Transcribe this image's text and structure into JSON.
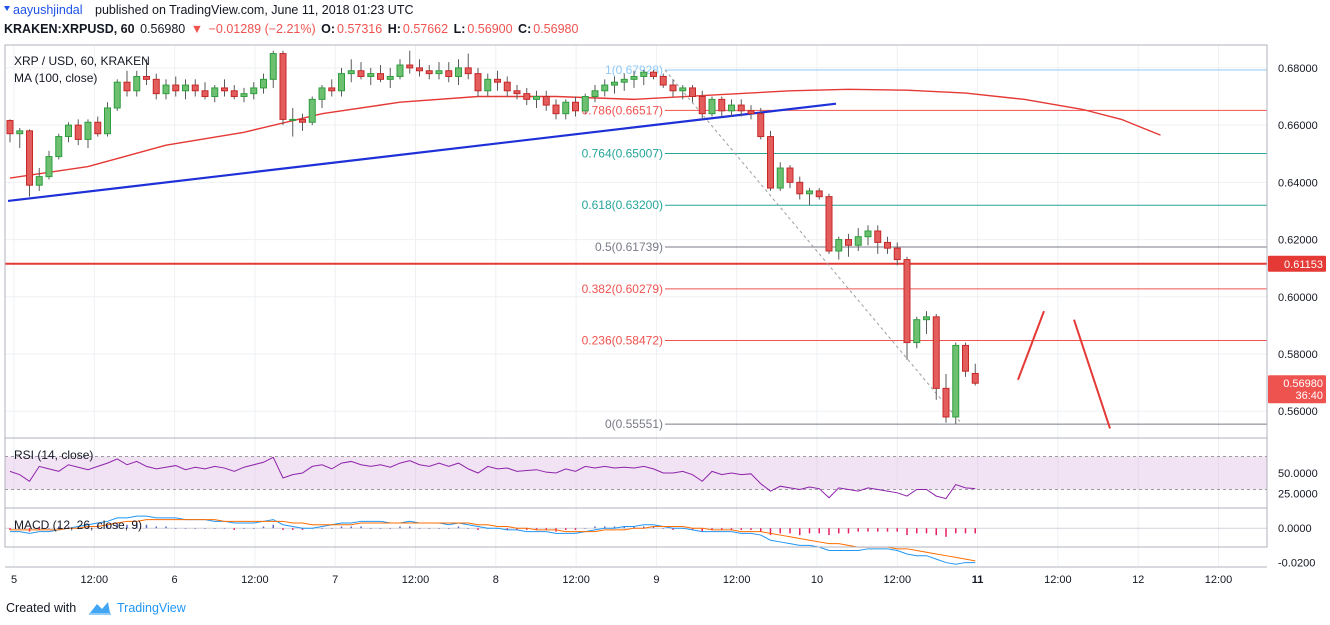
{
  "header": {
    "author": "aayushjindal",
    "published_text": "published on TradingView.com, June 11, 2018 01:23 UTC"
  },
  "ticker": {
    "symbol": "KRAKEN:XRPUSD, 60",
    "price": "0.56980",
    "change": "−0.01289 (−2.21%)",
    "open_label": "O:",
    "open": "0.57316",
    "high_label": "H:",
    "high": "0.57662",
    "low_label": "L:",
    "low": "0.56900",
    "close_label": "C:",
    "close": "0.56980",
    "colors": {
      "down": "#ef5350",
      "text": "#131722"
    }
  },
  "chart_data": {
    "type": "candlestick",
    "title": "XRP / USD, 60, KRAKEN",
    "indicator_label": "MA (100, close)",
    "y_axis_ticks": [
      "0.68000",
      "0.66000",
      "0.64000",
      "0.62000",
      "0.60000",
      "0.58000",
      "0.56000"
    ],
    "y_range": [
      0.551,
      0.688
    ],
    "x_axis_ticks": [
      "5",
      "12:00",
      "6",
      "12:00",
      "7",
      "12:00",
      "8",
      "12:00",
      "9",
      "12:00",
      "10",
      "12:00",
      "11",
      "12:00",
      "12",
      "12:00"
    ],
    "price_tags": [
      {
        "value": 0.61153,
        "text": "0.61153",
        "color": "#e53935"
      },
      {
        "value": 0.5698,
        "text": "0.56980",
        "color": "#ef5350"
      },
      {
        "value": 0.5656,
        "text": "36:40",
        "color": "#ef5350"
      }
    ],
    "horizontal_line": {
      "value": 0.61153,
      "color": "#e53935"
    },
    "fibonacci": [
      {
        "label": "1(0.67928)",
        "value": 0.67928,
        "color": "#90caf9"
      },
      {
        "label": "0.786(0.66517)",
        "value": 0.66517,
        "color": "#ef5350"
      },
      {
        "label": "0.764(0.65007)",
        "value": 0.65007,
        "color": "#26a69a"
      },
      {
        "label": "0.618(0.63200)",
        "value": 0.632,
        "color": "#26a69a"
      },
      {
        "label": "0.5(0.61739)",
        "value": 0.61739,
        "color": "#787b86"
      },
      {
        "label": "0.382(0.60279)",
        "value": 0.60279,
        "color": "#ef5350"
      },
      {
        "label": "0.236(0.58472)",
        "value": 0.58472,
        "color": "#ef5350"
      },
      {
        "label": "0(0.55551)",
        "value": 0.55551,
        "color": "#787b86"
      }
    ],
    "trendline": {
      "from": {
        "x": 0,
        "y": 0.6335
      },
      "to": {
        "x": 106,
        "y": 0.6675
      },
      "color": "#1e30d8"
    },
    "ma100": [
      [
        0,
        0.6415
      ],
      [
        8,
        0.6455
      ],
      [
        16,
        0.653
      ],
      [
        24,
        0.6575
      ],
      [
        32,
        0.664
      ],
      [
        40,
        0.668
      ],
      [
        48,
        0.67
      ],
      [
        56,
        0.67
      ],
      [
        64,
        0.669
      ],
      [
        72,
        0.6705
      ],
      [
        80,
        0.672
      ],
      [
        86,
        0.6725
      ],
      [
        92,
        0.6722
      ],
      [
        98,
        0.6712
      ],
      [
        104,
        0.669
      ],
      [
        110,
        0.6655
      ],
      [
        114,
        0.662
      ],
      [
        118,
        0.6565
      ]
    ],
    "candles": [
      [
        0.6616,
        0.662,
        0.654,
        0.657
      ],
      [
        0.657,
        0.659,
        0.652,
        0.658
      ],
      [
        0.658,
        0.6585,
        0.635,
        0.639
      ],
      [
        0.639,
        0.645,
        0.637,
        0.642
      ],
      [
        0.642,
        0.651,
        0.641,
        0.649
      ],
      [
        0.649,
        0.657,
        0.648,
        0.656
      ],
      [
        0.656,
        0.661,
        0.654,
        0.66
      ],
      [
        0.66,
        0.662,
        0.653,
        0.655
      ],
      [
        0.655,
        0.662,
        0.652,
        0.661
      ],
      [
        0.661,
        0.663,
        0.656,
        0.657
      ],
      [
        0.657,
        0.668,
        0.656,
        0.666
      ],
      [
        0.666,
        0.676,
        0.665,
        0.675
      ],
      [
        0.675,
        0.679,
        0.67,
        0.672
      ],
      [
        0.672,
        0.679,
        0.67,
        0.677
      ],
      [
        0.677,
        0.683,
        0.674,
        0.676
      ],
      [
        0.676,
        0.678,
        0.669,
        0.671
      ],
      [
        0.671,
        0.676,
        0.669,
        0.674
      ],
      [
        0.674,
        0.677,
        0.67,
        0.672
      ],
      [
        0.672,
        0.676,
        0.669,
        0.674
      ],
      [
        0.674,
        0.676,
        0.67,
        0.672
      ],
      [
        0.672,
        0.675,
        0.669,
        0.67
      ],
      [
        0.67,
        0.674,
        0.668,
        0.673
      ],
      [
        0.673,
        0.676,
        0.67,
        0.672
      ],
      [
        0.672,
        0.674,
        0.669,
        0.67
      ],
      [
        0.67,
        0.673,
        0.668,
        0.671
      ],
      [
        0.671,
        0.675,
        0.669,
        0.673
      ],
      [
        0.673,
        0.678,
        0.671,
        0.676
      ],
      [
        0.676,
        0.686,
        0.673,
        0.685
      ],
      [
        0.685,
        0.686,
        0.66,
        0.662
      ],
      [
        0.662,
        0.666,
        0.656,
        0.662
      ],
      [
        0.662,
        0.664,
        0.658,
        0.661
      ],
      [
        0.661,
        0.67,
        0.66,
        0.669
      ],
      [
        0.669,
        0.674,
        0.666,
        0.673
      ],
      [
        0.673,
        0.676,
        0.67,
        0.672
      ],
      [
        0.672,
        0.68,
        0.67,
        0.678
      ],
      [
        0.678,
        0.683,
        0.675,
        0.679
      ],
      [
        0.679,
        0.682,
        0.676,
        0.677
      ],
      [
        0.677,
        0.68,
        0.674,
        0.678
      ],
      [
        0.678,
        0.681,
        0.675,
        0.676
      ],
      [
        0.676,
        0.68,
        0.673,
        0.677
      ],
      [
        0.677,
        0.683,
        0.676,
        0.681
      ],
      [
        0.681,
        0.686,
        0.678,
        0.68
      ],
      [
        0.68,
        0.683,
        0.677,
        0.679
      ],
      [
        0.679,
        0.681,
        0.676,
        0.678
      ],
      [
        0.678,
        0.682,
        0.676,
        0.679
      ],
      [
        0.679,
        0.682,
        0.675,
        0.677
      ],
      [
        0.677,
        0.683,
        0.674,
        0.68
      ],
      [
        0.68,
        0.685,
        0.676,
        0.678
      ],
      [
        0.678,
        0.68,
        0.67,
        0.672
      ],
      [
        0.672,
        0.678,
        0.67,
        0.676
      ],
      [
        0.676,
        0.679,
        0.672,
        0.675
      ],
      [
        0.675,
        0.677,
        0.67,
        0.672
      ],
      [
        0.672,
        0.674,
        0.669,
        0.671
      ],
      [
        0.671,
        0.673,
        0.667,
        0.669
      ],
      [
        0.669,
        0.672,
        0.666,
        0.67
      ],
      [
        0.67,
        0.672,
        0.665,
        0.667
      ],
      [
        0.667,
        0.669,
        0.662,
        0.664
      ],
      [
        0.664,
        0.669,
        0.662,
        0.668
      ],
      [
        0.668,
        0.67,
        0.663,
        0.665
      ],
      [
        0.665,
        0.671,
        0.664,
        0.67
      ],
      [
        0.67,
        0.674,
        0.668,
        0.672
      ],
      [
        0.672,
        0.676,
        0.67,
        0.674
      ],
      [
        0.674,
        0.677,
        0.671,
        0.675
      ],
      [
        0.675,
        0.678,
        0.672,
        0.676
      ],
      [
        0.676,
        0.679,
        0.673,
        0.677
      ],
      [
        0.677,
        0.6793,
        0.674,
        0.6785
      ],
      [
        0.6785,
        0.6793,
        0.676,
        0.677
      ],
      [
        0.677,
        0.678,
        0.673,
        0.674
      ],
      [
        0.674,
        0.676,
        0.67,
        0.672
      ],
      [
        0.672,
        0.674,
        0.669,
        0.673
      ],
      [
        0.673,
        0.674,
        0.668,
        0.67
      ],
      [
        0.67,
        0.672,
        0.662,
        0.664
      ],
      [
        0.664,
        0.67,
        0.663,
        0.669
      ],
      [
        0.669,
        0.67,
        0.663,
        0.665
      ],
      [
        0.665,
        0.669,
        0.663,
        0.667
      ],
      [
        0.667,
        0.669,
        0.663,
        0.665
      ],
      [
        0.665,
        0.667,
        0.662,
        0.664
      ],
      [
        0.664,
        0.666,
        0.655,
        0.656
      ],
      [
        0.656,
        0.658,
        0.637,
        0.638
      ],
      [
        0.638,
        0.647,
        0.637,
        0.645
      ],
      [
        0.645,
        0.646,
        0.638,
        0.64
      ],
      [
        0.64,
        0.642,
        0.634,
        0.636
      ],
      [
        0.636,
        0.638,
        0.632,
        0.637
      ],
      [
        0.637,
        0.638,
        0.634,
        0.635
      ],
      [
        0.635,
        0.636,
        0.615,
        0.616
      ],
      [
        0.616,
        0.621,
        0.613,
        0.62
      ],
      [
        0.62,
        0.622,
        0.614,
        0.618
      ],
      [
        0.618,
        0.624,
        0.616,
        0.621
      ],
      [
        0.621,
        0.625,
        0.618,
        0.623
      ],
      [
        0.623,
        0.625,
        0.615,
        0.619
      ],
      [
        0.619,
        0.621,
        0.615,
        0.617
      ],
      [
        0.617,
        0.619,
        0.611,
        0.613
      ],
      [
        0.613,
        0.614,
        0.578,
        0.584
      ],
      [
        0.584,
        0.593,
        0.582,
        0.592
      ],
      [
        0.592,
        0.595,
        0.587,
        0.593
      ],
      [
        0.593,
        0.594,
        0.564,
        0.568
      ],
      [
        0.568,
        0.573,
        0.556,
        0.558
      ],
      [
        0.558,
        0.584,
        0.5555,
        0.583
      ],
      [
        0.583,
        0.584,
        0.572,
        0.574
      ],
      [
        0.5732,
        0.5766,
        0.569,
        0.5698
      ]
    ]
  },
  "rsi": {
    "label": "RSI (14, close)",
    "ticks": [
      "50.0000",
      "25.0000"
    ],
    "band": [
      30,
      70
    ],
    "values": [
      52,
      48,
      40,
      58,
      55,
      52,
      60,
      57,
      54,
      58,
      62,
      67,
      60,
      64,
      58,
      55,
      57,
      59,
      54,
      57,
      55,
      58,
      56,
      52,
      57,
      60,
      63,
      69,
      44,
      48,
      50,
      58,
      60,
      55,
      62,
      64,
      60,
      58,
      60,
      57,
      62,
      65,
      60,
      58,
      62,
      58,
      62,
      55,
      50,
      58,
      55,
      56,
      52,
      53,
      54,
      51,
      50,
      55,
      52,
      58,
      56,
      58,
      56,
      57,
      56,
      58,
      55,
      50,
      50,
      52,
      48,
      40,
      52,
      48,
      50,
      48,
      49,
      37,
      28,
      34,
      32,
      30,
      33,
      31,
      20,
      32,
      30,
      28,
      32,
      30,
      28,
      26,
      22,
      30,
      30,
      22,
      19,
      36,
      32,
      31
    ]
  },
  "macd": {
    "label": "MACD (12, 26, close, 9)",
    "ticks": [
      "0.0000",
      "-0.0200"
    ],
    "histogram": [
      -0.001,
      0.0,
      -0.002,
      -0.001,
      0.0,
      0.001,
      0.001,
      0.0,
      0.001,
      0.002,
      0.002,
      0.003,
      0.002,
      0.003,
      0.002,
      0.001,
      0.001,
      0.0,
      0.0,
      0.0,
      0.0,
      0.0,
      0.0,
      -0.001,
      0.0,
      0.0,
      0.001,
      0.002,
      -0.001,
      -0.001,
      -0.001,
      0.0,
      0.0,
      0.0,
      0.001,
      0.001,
      0.001,
      0.0,
      0.0,
      0.0,
      0.001,
      0.001,
      0.0,
      0.0,
      0.0,
      0.0,
      0.001,
      0.0,
      -0.001,
      0.0,
      0.0,
      -0.001,
      -0.001,
      -0.001,
      -0.001,
      -0.001,
      -0.002,
      -0.001,
      -0.001,
      0.0,
      0.001,
      0.001,
      0.001,
      0.001,
      0.001,
      0.001,
      0.001,
      0.0,
      -0.001,
      0.0,
      -0.001,
      -0.002,
      -0.001,
      -0.001,
      -0.001,
      -0.001,
      -0.001,
      -0.002,
      -0.004,
      -0.003,
      -0.003,
      -0.004,
      -0.003,
      -0.003,
      -0.004,
      -0.003,
      -0.003,
      -0.002,
      -0.002,
      -0.002,
      -0.002,
      -0.002,
      -0.004,
      -0.003,
      -0.003,
      -0.004,
      -0.005,
      -0.003,
      -0.003,
      -0.003
    ],
    "macd_line": [
      -0.002,
      -0.002,
      -0.003,
      -0.002,
      -0.002,
      -0.001,
      0.0,
      0.001,
      0.002,
      0.003,
      0.004,
      0.006,
      0.006,
      0.007,
      0.007,
      0.006,
      0.006,
      0.006,
      0.005,
      0.005,
      0.005,
      0.004,
      0.004,
      0.003,
      0.003,
      0.003,
      0.004,
      0.005,
      0.002,
      0.001,
      0.0,
      0.0,
      0.001,
      0.002,
      0.003,
      0.003,
      0.004,
      0.004,
      0.004,
      0.003,
      0.003,
      0.004,
      0.003,
      0.003,
      0.003,
      0.002,
      0.003,
      0.002,
      0.001,
      0.0,
      0.0,
      -0.001,
      -0.001,
      -0.002,
      -0.002,
      -0.002,
      -0.003,
      -0.003,
      -0.003,
      -0.002,
      -0.001,
      0.0,
      0.0,
      0.001,
      0.001,
      0.002,
      0.002,
      0.001,
      0.0,
      0.0,
      -0.001,
      -0.002,
      -0.002,
      -0.002,
      -0.002,
      -0.003,
      -0.003,
      -0.004,
      -0.007,
      -0.008,
      -0.009,
      -0.01,
      -0.01,
      -0.011,
      -0.013,
      -0.013,
      -0.013,
      -0.013,
      -0.012,
      -0.012,
      -0.012,
      -0.013,
      -0.015,
      -0.016,
      -0.016,
      -0.018,
      -0.02,
      -0.021,
      -0.02,
      -0.02
    ],
    "signal_line": [
      -0.001,
      -0.001,
      -0.001,
      -0.001,
      -0.001,
      -0.001,
      0.0,
      0.0,
      0.001,
      0.001,
      0.002,
      0.003,
      0.004,
      0.004,
      0.005,
      0.005,
      0.005,
      0.005,
      0.005,
      0.005,
      0.005,
      0.005,
      0.004,
      0.004,
      0.004,
      0.004,
      0.004,
      0.004,
      0.004,
      0.003,
      0.003,
      0.002,
      0.002,
      0.002,
      0.002,
      0.002,
      0.003,
      0.003,
      0.003,
      0.003,
      0.003,
      0.003,
      0.003,
      0.003,
      0.003,
      0.003,
      0.003,
      0.003,
      0.002,
      0.002,
      0.001,
      0.001,
      0.0,
      0.0,
      -0.001,
      -0.001,
      -0.001,
      -0.002,
      -0.002,
      -0.002,
      -0.002,
      -0.001,
      -0.001,
      -0.001,
      0.0,
      0.0,
      0.001,
      0.001,
      0.001,
      0.001,
      0.0,
      0.0,
      -0.001,
      -0.001,
      -0.001,
      -0.002,
      -0.002,
      -0.002,
      -0.003,
      -0.004,
      -0.005,
      -0.006,
      -0.007,
      -0.008,
      -0.009,
      -0.009,
      -0.01,
      -0.011,
      -0.011,
      -0.011,
      -0.011,
      -0.012,
      -0.012,
      -0.013,
      -0.014,
      -0.015,
      -0.016,
      -0.017,
      -0.018,
      -0.019
    ]
  },
  "projection": {
    "color": "#e53935",
    "lines": [
      {
        "from": 0.571,
        "to": 0.595
      },
      {
        "from": 0.592,
        "to": 0.554
      }
    ]
  },
  "footer": {
    "created": "Created with",
    "brand": "TradingView",
    "brand_color": "#2196f3"
  }
}
